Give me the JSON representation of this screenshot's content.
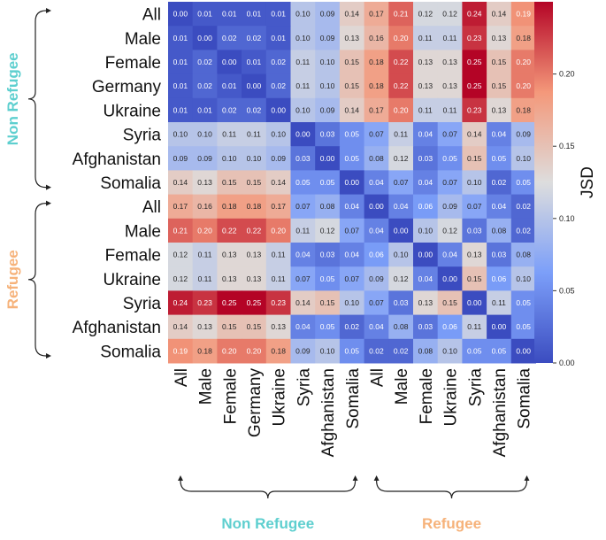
{
  "chart_data": {
    "type": "heatmap",
    "row_labels": [
      "All",
      "Male",
      "Female",
      "Germany",
      "Ukraine",
      "Syria",
      "Afghanistan",
      "Somalia",
      "All",
      "Male",
      "Female",
      "Ukraine",
      "Syria",
      "Afghanistan",
      "Somalia"
    ],
    "col_labels": [
      "All",
      "Male",
      "Female",
      "Germany",
      "Ukraine",
      "Syria",
      "Afghanistan",
      "Somalia",
      "All",
      "Male",
      "Female",
      "Ukraine",
      "Syria",
      "Afghanistan",
      "Somalia"
    ],
    "values": [
      [
        0.0,
        0.01,
        0.01,
        0.01,
        0.01,
        0.1,
        0.09,
        0.14,
        0.17,
        0.21,
        0.12,
        0.12,
        0.24,
        0.14,
        0.19
      ],
      [
        0.01,
        0.0,
        0.02,
        0.02,
        0.01,
        0.1,
        0.09,
        0.13,
        0.16,
        0.2,
        0.11,
        0.11,
        0.23,
        0.13,
        0.18
      ],
      [
        0.01,
        0.02,
        0.0,
        0.01,
        0.02,
        0.11,
        0.1,
        0.15,
        0.18,
        0.22,
        0.13,
        0.13,
        0.25,
        0.15,
        0.2
      ],
      [
        0.01,
        0.02,
        0.01,
        0.0,
        0.02,
        0.11,
        0.1,
        0.15,
        0.18,
        0.22,
        0.13,
        0.13,
        0.25,
        0.15,
        0.2
      ],
      [
        0.01,
        0.01,
        0.02,
        0.02,
        0.0,
        0.1,
        0.09,
        0.14,
        0.17,
        0.2,
        0.11,
        0.11,
        0.23,
        0.13,
        0.18
      ],
      [
        0.1,
        0.1,
        0.11,
        0.11,
        0.1,
        0.0,
        0.03,
        0.05,
        0.07,
        0.11,
        0.04,
        0.07,
        0.14,
        0.04,
        0.09
      ],
      [
        0.09,
        0.09,
        0.1,
        0.1,
        0.09,
        0.03,
        0.0,
        0.05,
        0.08,
        0.12,
        0.03,
        0.05,
        0.15,
        0.05,
        0.1
      ],
      [
        0.14,
        0.13,
        0.15,
        0.15,
        0.14,
        0.05,
        0.05,
        0.0,
        0.04,
        0.07,
        0.04,
        0.07,
        0.1,
        0.02,
        0.05
      ],
      [
        0.17,
        0.16,
        0.18,
        0.18,
        0.17,
        0.07,
        0.08,
        0.04,
        0.0,
        0.04,
        0.06,
        0.09,
        0.07,
        0.04,
        0.02
      ],
      [
        0.21,
        0.2,
        0.22,
        0.22,
        0.2,
        0.11,
        0.12,
        0.07,
        0.04,
        0.0,
        0.1,
        0.12,
        0.03,
        0.08,
        0.02
      ],
      [
        0.12,
        0.11,
        0.13,
        0.13,
        0.11,
        0.04,
        0.03,
        0.04,
        0.06,
        0.1,
        0.0,
        0.04,
        0.13,
        0.03,
        0.08
      ],
      [
        0.12,
        0.11,
        0.13,
        0.13,
        0.11,
        0.07,
        0.05,
        0.07,
        0.09,
        0.12,
        0.04,
        0.0,
        0.15,
        0.06,
        0.1
      ],
      [
        0.24,
        0.23,
        0.25,
        0.25,
        0.23,
        0.14,
        0.15,
        0.1,
        0.07,
        0.03,
        0.13,
        0.15,
        0.0,
        0.11,
        0.05
      ],
      [
        0.14,
        0.13,
        0.15,
        0.15,
        0.13,
        0.04,
        0.05,
        0.02,
        0.04,
        0.08,
        0.03,
        0.06,
        0.11,
        0.0,
        0.05
      ],
      [
        0.19,
        0.18,
        0.2,
        0.2,
        0.18,
        0.09,
        0.1,
        0.05,
        0.02,
        0.02,
        0.08,
        0.1,
        0.05,
        0.05,
        0.0
      ]
    ],
    "groups": [
      {
        "label": "Non Refugee",
        "start": 0,
        "end": 7,
        "color": "#5ecfcf"
      },
      {
        "label": "Refugee",
        "start": 8,
        "end": 14,
        "color": "#f6b27a"
      }
    ],
    "colorbar": {
      "label": "JSD",
      "range": [
        0.0,
        0.25
      ],
      "ticks": [
        0.0,
        0.05,
        0.1,
        0.15,
        0.2
      ],
      "tick_labels": [
        "0.00",
        "0.05",
        "0.10",
        "0.15",
        "0.20"
      ],
      "colormap": "coolwarm"
    },
    "colors": {
      "low": "#3b4cc0",
      "mid": "#dddddd",
      "high": "#b40426",
      "non_refugee": "#5ecfcf",
      "refugee": "#f6b27a"
    }
  }
}
